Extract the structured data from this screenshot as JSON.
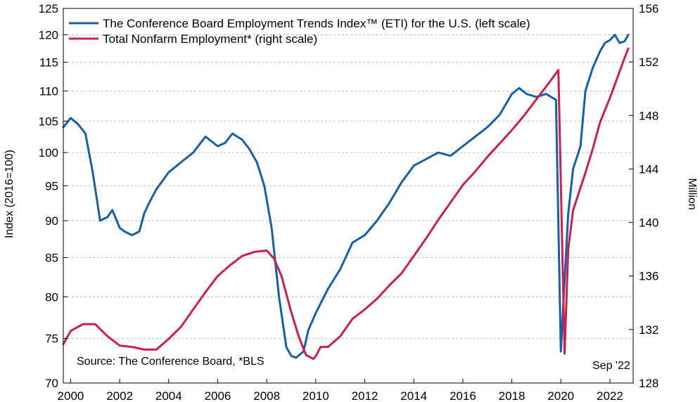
{
  "chart_data": {
    "type": "line",
    "left_axis": {
      "label": "Index (2016=100)",
      "ticks": [
        "70",
        "75",
        "80",
        "85",
        "90",
        "95",
        "100",
        "105",
        "110",
        "115",
        "120",
        "125"
      ],
      "ylim": [
        70,
        125
      ],
      "scale": "log"
    },
    "right_axis": {
      "label": "Million",
      "ticks": [
        "128",
        "132",
        "136",
        "140",
        "144",
        "148",
        "152",
        "156"
      ],
      "ylim": [
        128,
        156
      ]
    },
    "x_axis": {
      "ticks": [
        "2000",
        "2002",
        "2004",
        "2006",
        "2008",
        "2010",
        "2012",
        "2014",
        "2016",
        "2018",
        "2020",
        "2022"
      ],
      "xlim": [
        1999.7,
        2022.95
      ]
    },
    "grid": "horizontal dashed",
    "series": [
      {
        "name": "The Conference Board Employment Trends Index™ (ETI) for the U.S. (left scale)",
        "color": "#1560a8",
        "axis": "left",
        "x": [
          1999.7,
          2000.0,
          2000.3,
          2000.6,
          2000.9,
          2001.2,
          2001.5,
          2001.7,
          2002.0,
          2002.2,
          2002.5,
          2002.8,
          2003.0,
          2003.2,
          2003.5,
          2004.0,
          2004.5,
          2005.0,
          2005.5,
          2006.0,
          2006.3,
          2006.6,
          2007.0,
          2007.3,
          2007.6,
          2007.9,
          2008.2,
          2008.5,
          2008.8,
          2009.0,
          2009.2,
          2009.5,
          2009.7,
          2010.0,
          2010.5,
          2011.0,
          2011.5,
          2012.0,
          2012.5,
          2013.0,
          2013.5,
          2014.0,
          2014.5,
          2015.0,
          2015.5,
          2016.0,
          2016.5,
          2017.0,
          2017.5,
          2018.0,
          2018.3,
          2018.6,
          2019.0,
          2019.4,
          2019.8,
          2020.0,
          2020.15,
          2020.3,
          2020.5,
          2020.8,
          2021.0,
          2021.3,
          2021.6,
          2021.8,
          2022.0,
          2022.2,
          2022.4,
          2022.6,
          2022.75
        ],
        "values": [
          104.0,
          105.5,
          104.5,
          103.0,
          97.0,
          90.0,
          90.5,
          91.5,
          89.0,
          88.5,
          88.0,
          88.5,
          91.0,
          92.5,
          94.5,
          97.0,
          98.5,
          100.0,
          102.5,
          101.0,
          101.5,
          103.0,
          102.0,
          100.5,
          98.5,
          95.0,
          89.0,
          80.0,
          74.0,
          73.0,
          72.8,
          73.5,
          76.0,
          78.0,
          81.0,
          83.5,
          87.0,
          88.0,
          90.0,
          92.5,
          95.5,
          98.0,
          99.0,
          100.0,
          99.5,
          101.0,
          102.5,
          104.0,
          106.0,
          109.5,
          110.5,
          109.5,
          109.0,
          109.5,
          108.5,
          73.5,
          82.0,
          91.0,
          97.5,
          101.0,
          110.0,
          114.0,
          117.0,
          118.5,
          119.0,
          120.0,
          118.5,
          118.8,
          120.0
        ]
      },
      {
        "name": "Total Nonfarm Employment* (right scale)",
        "color": "#cc1f4e",
        "axis": "right",
        "x": [
          1999.7,
          2000.0,
          2000.5,
          2001.0,
          2001.5,
          2002.0,
          2002.5,
          2003.0,
          2003.5,
          2004.0,
          2004.5,
          2005.0,
          2005.5,
          2006.0,
          2006.5,
          2007.0,
          2007.5,
          2008.0,
          2008.3,
          2008.6,
          2009.0,
          2009.3,
          2009.6,
          2009.9,
          2010.0,
          2010.2,
          2010.5,
          2011.0,
          2011.5,
          2012.0,
          2012.5,
          2013.0,
          2013.5,
          2014.0,
          2014.5,
          2015.0,
          2015.5,
          2016.0,
          2016.5,
          2017.0,
          2017.5,
          2018.0,
          2018.5,
          2019.0,
          2019.5,
          2019.9,
          2020.15,
          2020.3,
          2020.5,
          2020.8,
          2021.0,
          2021.3,
          2021.6,
          2022.0,
          2022.3,
          2022.6,
          2022.75
        ],
        "values": [
          130.9,
          131.9,
          132.4,
          132.4,
          131.5,
          130.8,
          130.7,
          130.5,
          130.5,
          131.3,
          132.2,
          133.5,
          134.8,
          136.0,
          136.8,
          137.5,
          137.8,
          137.9,
          137.3,
          136.0,
          133.3,
          131.5,
          130.1,
          129.8,
          130.0,
          130.7,
          130.7,
          131.5,
          132.8,
          133.5,
          134.3,
          135.3,
          136.2,
          137.5,
          138.8,
          140.2,
          141.5,
          142.8,
          143.8,
          144.9,
          145.9,
          146.9,
          148.0,
          149.2,
          150.4,
          151.4,
          130.2,
          138.0,
          140.9,
          142.6,
          143.7,
          145.5,
          147.5,
          149.3,
          150.8,
          152.3,
          153.0
        ]
      }
    ],
    "source": "Source: The Conference Board, *BLS",
    "date_note": "Sep '22"
  }
}
